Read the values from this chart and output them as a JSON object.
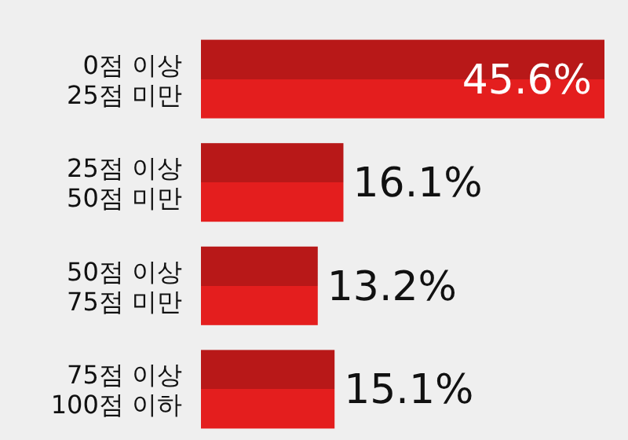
{
  "chart_data": {
    "type": "bar",
    "orientation": "horizontal",
    "categories": [
      "0점 이상\n25점 미만",
      "25점 이상\n50점 미만",
      "50점 이상\n75점 미만",
      "75점 이상\n100점 이하"
    ],
    "values": [
      45.6,
      16.1,
      13.2,
      15.1
    ],
    "color": "#e41e1e",
    "data_labels": true,
    "value_labels": [
      "45.6%",
      "16.1%",
      "13.2%",
      "15.1%"
    ]
  }
}
